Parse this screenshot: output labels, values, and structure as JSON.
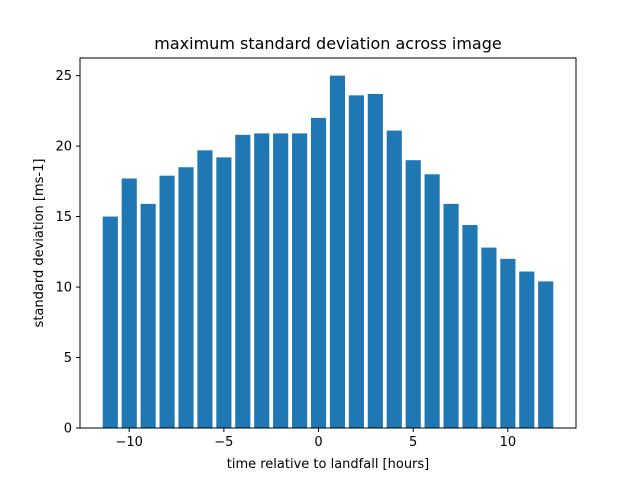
{
  "chart_data": {
    "type": "bar",
    "title": "maximum standard deviation across image",
    "xlabel": "time relative to landfall [hours]",
    "ylabel": "standard deviation [ms-1]",
    "x": [
      -11,
      -10,
      -9,
      -8,
      -7,
      -6,
      -5,
      -4,
      -3,
      -2,
      -1,
      0,
      1,
      2,
      3,
      4,
      5,
      6,
      7,
      8,
      9,
      10,
      11,
      12
    ],
    "values": [
      15.0,
      17.7,
      15.9,
      17.9,
      18.5,
      19.7,
      19.2,
      20.8,
      20.9,
      20.9,
      20.9,
      22.0,
      25.0,
      23.6,
      23.7,
      21.1,
      19.0,
      18.0,
      15.9,
      14.4,
      12.8,
      12.0,
      11.1,
      10.4
    ],
    "xlim": [
      -12.6,
      13.6
    ],
    "ylim": [
      0,
      26.25
    ],
    "xticks": [
      -10,
      -5,
      0,
      5,
      10
    ],
    "xtick_labels": [
      "−10",
      "−5",
      "0",
      "5",
      "10"
    ],
    "yticks": [
      0,
      5,
      10,
      15,
      20,
      25
    ],
    "ytick_labels": [
      "0",
      "5",
      "10",
      "15",
      "20",
      "25"
    ],
    "bar_color": "#1f77b4",
    "grid": false,
    "legend": "none"
  }
}
